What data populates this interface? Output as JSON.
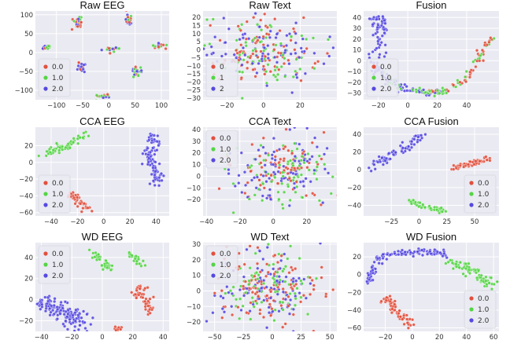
{
  "figure": {
    "background": "#ffffff",
    "axes_background": "#eaeaf2",
    "grid_color": "#ffffff"
  },
  "series_colors": [
    "#e1503d",
    "#55d446",
    "#5549e0"
  ],
  "chart_data": [
    {
      "type": "scatter",
      "title": "Raw EEG",
      "xlim": [
        -140,
        115
      ],
      "ylim": [
        -125,
        110
      ],
      "xticks": [
        -100,
        -50,
        0,
        50,
        100
      ],
      "yticks": [
        -100,
        -50,
        0,
        50,
        100
      ],
      "legend": {
        "placement": "lower-left",
        "entries": [
          "0.0",
          "1.0",
          "2.0"
        ]
      },
      "clusters": [
        {
          "series": [
            0,
            1,
            2
          ],
          "cx": -58,
          "cy": 78,
          "sx": 4,
          "sy": 12,
          "n": 26
        },
        {
          "series": [
            0,
            1,
            2
          ],
          "cx": 38,
          "cy": 88,
          "sx": 3,
          "sy": 8,
          "n": 22
        },
        {
          "series": [
            0,
            1,
            2
          ],
          "cx": -115,
          "cy": 12,
          "sx": 6,
          "sy": 4,
          "n": 16
        },
        {
          "series": [
            0,
            1,
            2
          ],
          "cx": 5,
          "cy": 10,
          "sx": 8,
          "sy": 3,
          "n": 16
        },
        {
          "series": [
            0,
            1,
            2
          ],
          "cx": 95,
          "cy": 18,
          "sx": 6,
          "sy": 4,
          "n": 16
        },
        {
          "series": [
            0,
            1,
            2
          ],
          "cx": -55,
          "cy": -38,
          "sx": 6,
          "sy": 7,
          "n": 18
        },
        {
          "series": [
            0,
            1,
            2
          ],
          "cx": 52,
          "cy": -50,
          "sx": 7,
          "sy": 7,
          "n": 20
        },
        {
          "series": [
            0,
            1,
            2
          ],
          "cx": -12,
          "cy": -115,
          "sx": 8,
          "sy": 3,
          "n": 16
        }
      ]
    },
    {
      "type": "scatter",
      "title": "Raw Text",
      "xlim": [
        -33,
        40
      ],
      "ylim": [
        -31,
        24
      ],
      "xticks": [
        -20,
        0,
        20
      ],
      "yticks": [
        -30,
        -25,
        -20,
        -15,
        -10,
        -5,
        0,
        5,
        10,
        15,
        20
      ],
      "legend": {
        "placement": "lower-left",
        "entries": [
          "0",
          "1",
          "2"
        ]
      },
      "clusters": [
        {
          "series": [
            0,
            1,
            2
          ],
          "cx": 0,
          "cy": -2,
          "sx": 15,
          "sy": 10,
          "n": 260
        }
      ]
    },
    {
      "type": "scatter",
      "title": "Fusion",
      "xlim": [
        -30,
        62
      ],
      "ylim": [
        -36,
        46
      ],
      "xticks": [
        -20,
        0,
        20,
        40
      ],
      "yticks": [
        -30,
        -20,
        -10,
        0,
        10,
        20,
        30,
        40
      ],
      "legend": {
        "placement": "lower-left",
        "entries": [
          "0.0",
          "1.0",
          "2.0"
        ]
      },
      "curves": [
        {
          "series": [
            2
          ],
          "pts": [
            [
              -22,
              42
            ],
            [
              -18,
              30
            ],
            [
              -20,
              15
            ],
            [
              -23,
              0
            ],
            [
              -18,
              -12
            ],
            [
              -8,
              -22
            ],
            [
              2,
              -28
            ]
          ],
          "spread": 2.5,
          "n": 110
        },
        {
          "series": [
            1,
            2
          ],
          "pts": [
            [
              -22,
              -5
            ],
            [
              -10,
              -20
            ],
            [
              5,
              -28
            ],
            [
              18,
              -30
            ],
            [
              28,
              -28
            ]
          ],
          "spread": 2.2,
          "n": 70
        },
        {
          "series": [
            0,
            1
          ],
          "pts": [
            [
              10,
              -30
            ],
            [
              25,
              -28
            ],
            [
              38,
              -18
            ],
            [
              46,
              -5
            ],
            [
              52,
              10
            ],
            [
              56,
              20
            ]
          ],
          "spread": 1.8,
          "n": 70
        }
      ]
    },
    {
      "type": "scatter",
      "title": "CCA EEG",
      "xlim": [
        -52,
        50
      ],
      "ylim": [
        -64,
        42
      ],
      "xticks": [
        -40,
        -20,
        0,
        20,
        40
      ],
      "yticks": [
        -60,
        -40,
        -20,
        0,
        20
      ],
      "legend": {
        "placement": "lower-left",
        "entries": [
          "0.0",
          "1.0",
          "2.0"
        ]
      },
      "curves": [
        {
          "series": [
            1
          ],
          "pts": [
            [
              -44,
              10
            ],
            [
              -35,
              16
            ],
            [
              -27,
              22
            ],
            [
              -20,
              28
            ],
            [
              -15,
              32
            ]
          ],
          "spread": 2.2,
          "n": 60
        },
        {
          "series": [
            2
          ],
          "pts": [
            [
              37,
              33
            ],
            [
              40,
              20
            ],
            [
              33,
              8
            ],
            [
              38,
              -5
            ],
            [
              42,
              -18
            ],
            [
              38,
              -26
            ]
          ],
          "spread": 2.8,
          "n": 90
        },
        {
          "series": [
            0
          ],
          "pts": [
            [
              -28,
              -42
            ],
            [
              -22,
              -38
            ],
            [
              -20,
              -46
            ],
            [
              -15,
              -52
            ],
            [
              -10,
              -56
            ]
          ],
          "spread": 2,
          "n": 45
        }
      ]
    },
    {
      "type": "scatter",
      "title": "CCA Text",
      "xlim": [
        -42,
        38
      ],
      "ylim": [
        -34,
        42
      ],
      "xticks": [
        -40,
        -20,
        0,
        20
      ],
      "yticks": [
        -20,
        -10,
        0,
        10,
        20,
        30,
        40
      ],
      "legend": {
        "placement": "top-left",
        "entries": [
          "0.0",
          "1.0",
          "2.0"
        ]
      },
      "clusters": [
        {
          "series": [
            0,
            1,
            2
          ],
          "cx": 5,
          "cy": 5,
          "sx": 14,
          "sy": 14,
          "n": 260
        }
      ]
    },
    {
      "type": "scatter",
      "title": "CCA Fusion",
      "xlim": [
        -50,
        72
      ],
      "ylim": [
        -52,
        48
      ],
      "xticks": [
        -25,
        0,
        25,
        50
      ],
      "yticks": [
        -40,
        -20,
        0,
        20,
        40
      ],
      "legend": {
        "placement": "lower-right",
        "entries": [
          "0.0",
          "1.0",
          "2.0"
        ]
      },
      "curves": [
        {
          "series": [
            2
          ],
          "pts": [
            [
              -40,
              5
            ],
            [
              -28,
              13
            ],
            [
              -15,
              22
            ],
            [
              -5,
              32
            ],
            [
              2,
              42
            ]
          ],
          "spread": 2.5,
          "n": 75
        },
        {
          "series": [
            0
          ],
          "pts": [
            [
              30,
              2
            ],
            [
              42,
              6
            ],
            [
              52,
              9
            ],
            [
              62,
              12
            ]
          ],
          "spread": 1.5,
          "n": 55
        },
        {
          "series": [
            1
          ],
          "pts": [
            [
              -8,
              -35
            ],
            [
              2,
              -40
            ],
            [
              12,
              -44
            ],
            [
              22,
              -46
            ]
          ],
          "spread": 1.5,
          "n": 50
        }
      ]
    },
    {
      "type": "scatter",
      "title": "WD EEG",
      "xlim": [
        -44,
        44
      ],
      "ylim": [
        -30,
        54
      ],
      "xticks": [
        -40,
        -20,
        0,
        20,
        40
      ],
      "yticks": [
        -20,
        0,
        20,
        40
      ],
      "legend": {
        "placement": "top-left",
        "entries": [
          "0.0",
          "1.0",
          "2.0"
        ]
      },
      "curves": [
        {
          "series": [
            1
          ],
          "pts": [
            [
              -5,
              45
            ],
            [
              -2,
              38
            ],
            [
              2,
              33
            ],
            [
              5,
              28
            ]
          ],
          "spread": 2.2,
          "n": 38
        },
        {
          "series": [
            1
          ],
          "pts": [
            [
              18,
              44
            ],
            [
              22,
              38
            ],
            [
              26,
              32
            ]
          ],
          "spread": 2,
          "n": 25
        },
        {
          "series": [
            0
          ],
          "pts": [
            [
              22,
              12
            ],
            [
              26,
              4
            ],
            [
              30,
              -6
            ],
            [
              34,
              -14
            ]
          ],
          "spread": 2.5,
          "n": 50
        },
        {
          "series": [
            0
          ],
          "pts": [
            [
              7,
              -26
            ],
            [
              12,
              -28
            ]
          ],
          "spread": 1.2,
          "n": 10
        },
        {
          "series": [
            2
          ],
          "pts": [
            [
              -42,
              0
            ],
            [
              -32,
              -6
            ],
            [
              -22,
              -14
            ],
            [
              -14,
              -24
            ]
          ],
          "spread": 4.5,
          "n": 150
        }
      ]
    },
    {
      "type": "scatter",
      "title": "WD Text",
      "xlim": [
        -60,
        56
      ],
      "ylim": [
        -26,
        31
      ],
      "xticks": [
        -50,
        -25,
        0,
        25,
        50
      ],
      "yticks": [
        -20,
        -10,
        0,
        10,
        20,
        30
      ],
      "legend": {
        "placement": "top-left",
        "entries": [
          "0.0",
          "1.0",
          "2.0"
        ]
      },
      "clusters": [
        {
          "series": [
            0,
            1,
            2
          ],
          "cx": -2,
          "cy": 2,
          "sx": 24,
          "sy": 11,
          "n": 300
        }
      ]
    },
    {
      "type": "scatter",
      "title": "WD Fusion",
      "xlim": [
        -36,
        64
      ],
      "ylim": [
        -64,
        36
      ],
      "xticks": [
        -20,
        0,
        20,
        40,
        60
      ],
      "yticks": [
        -60,
        -40,
        -20,
        0,
        20
      ],
      "legend": {
        "placement": "lower-right",
        "entries": [
          "0.0",
          "1.0",
          "2.0"
        ]
      },
      "curves": [
        {
          "series": [
            2
          ],
          "pts": [
            [
              -32,
              -8
            ],
            [
              -30,
              5
            ],
            [
              -25,
              18
            ],
            [
              -15,
              24
            ],
            [
              0,
              25
            ],
            [
              15,
              25
            ],
            [
              25,
              22
            ]
          ],
          "spread": 2,
          "n": 120
        },
        {
          "series": [
            1
          ],
          "pts": [
            [
              28,
              14
            ],
            [
              38,
              10
            ],
            [
              45,
              5
            ],
            [
              52,
              -5
            ],
            [
              58,
              -12
            ]
          ],
          "spread": 2.8,
          "n": 80
        },
        {
          "series": [
            0
          ],
          "pts": [
            [
              -20,
              -26
            ],
            [
              -15,
              -35
            ],
            [
              -8,
              -46
            ],
            [
              -2,
              -57
            ]
          ],
          "spread": 2,
          "n": 80
        }
      ]
    }
  ]
}
